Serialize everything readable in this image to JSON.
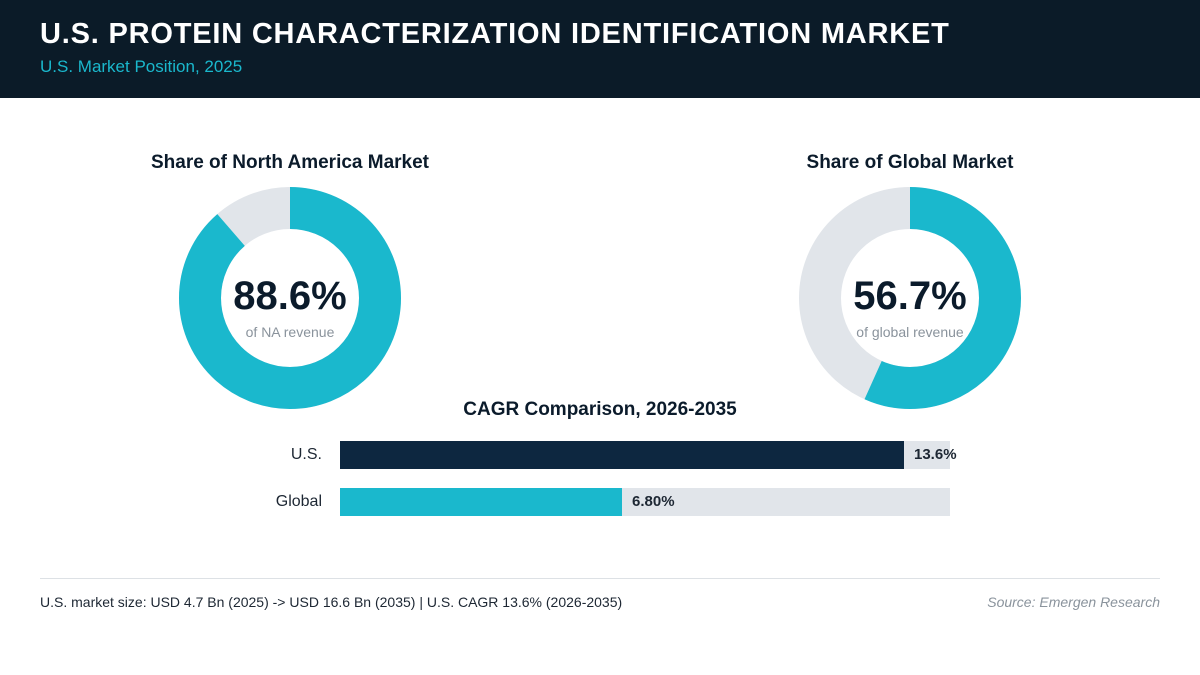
{
  "header": {
    "title": "U.S. PROTEIN CHARACTERIZATION IDENTIFICATION MARKET",
    "subtitle": "U.S. Market Position, 2025"
  },
  "colors": {
    "header_bg": "#0b1b28",
    "accent": "#1ab8cd",
    "navy": "#0d2740",
    "track": "#e1e5ea"
  },
  "chart_data": [
    {
      "type": "pie",
      "title": "Share of North America Market",
      "center_value": "88.6%",
      "center_label": "of NA revenue",
      "value": 88.6,
      "max": 100
    },
    {
      "type": "pie",
      "title": "Share of Global Market",
      "center_value": "56.7%",
      "center_label": "of global revenue",
      "value": 56.7,
      "max": 100
    },
    {
      "type": "bar",
      "title": "CAGR Comparison, 2026-2035",
      "categories": [
        "U.S.",
        "Global"
      ],
      "values": [
        13.6,
        6.8
      ],
      "value_labels": [
        "13.6%",
        "6.80%"
      ],
      "xlim": [
        0,
        14.7
      ],
      "orientation": "horizontal"
    }
  ],
  "footer": {
    "note": "U.S. market size: USD 4.7 Bn (2025) -> USD 16.6 Bn (2035)  |  U.S. CAGR 13.6% (2026-2035)",
    "source": "Source: Emergen Research"
  }
}
